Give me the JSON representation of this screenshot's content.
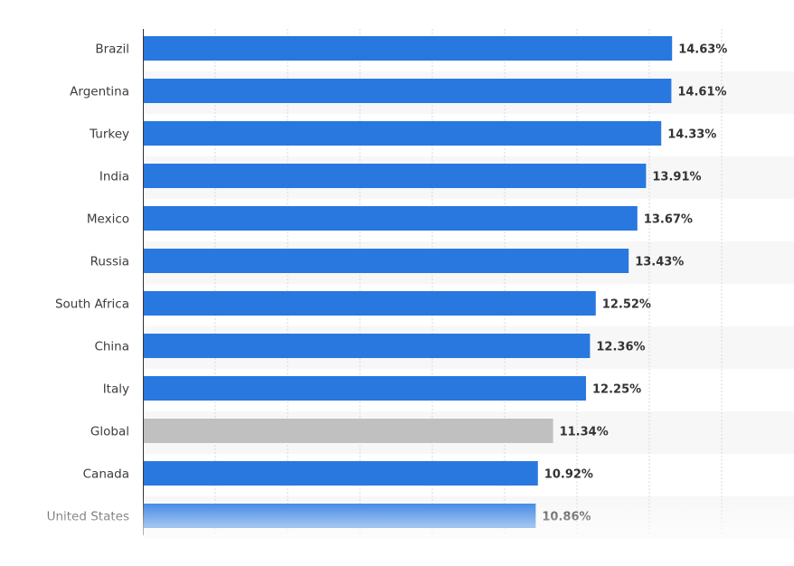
{
  "chart_data": {
    "type": "bar",
    "orientation": "horizontal",
    "categories": [
      "Brazil",
      "Argentina",
      "Turkey",
      "India",
      "Mexico",
      "Russia",
      "South Africa",
      "China",
      "Italy",
      "Global",
      "Canada",
      "United States"
    ],
    "values": [
      14.63,
      14.61,
      14.33,
      13.91,
      13.67,
      13.43,
      12.52,
      12.36,
      12.25,
      11.34,
      10.92,
      10.86
    ],
    "value_labels": [
      "14.63%",
      "14.61%",
      "14.33%",
      "13.91%",
      "13.67%",
      "13.43%",
      "12.52%",
      "12.36%",
      "12.25%",
      "11.34%",
      "10.92%",
      "10.86%"
    ],
    "highlight_category": "Global",
    "colors": {
      "bar": "#2878e0",
      "highlight": "#c0c0c0",
      "grid": "#d8d8d8",
      "band": "#f7f7f7"
    },
    "title": "",
    "xlabel": "",
    "ylabel": "",
    "grid": true
  }
}
